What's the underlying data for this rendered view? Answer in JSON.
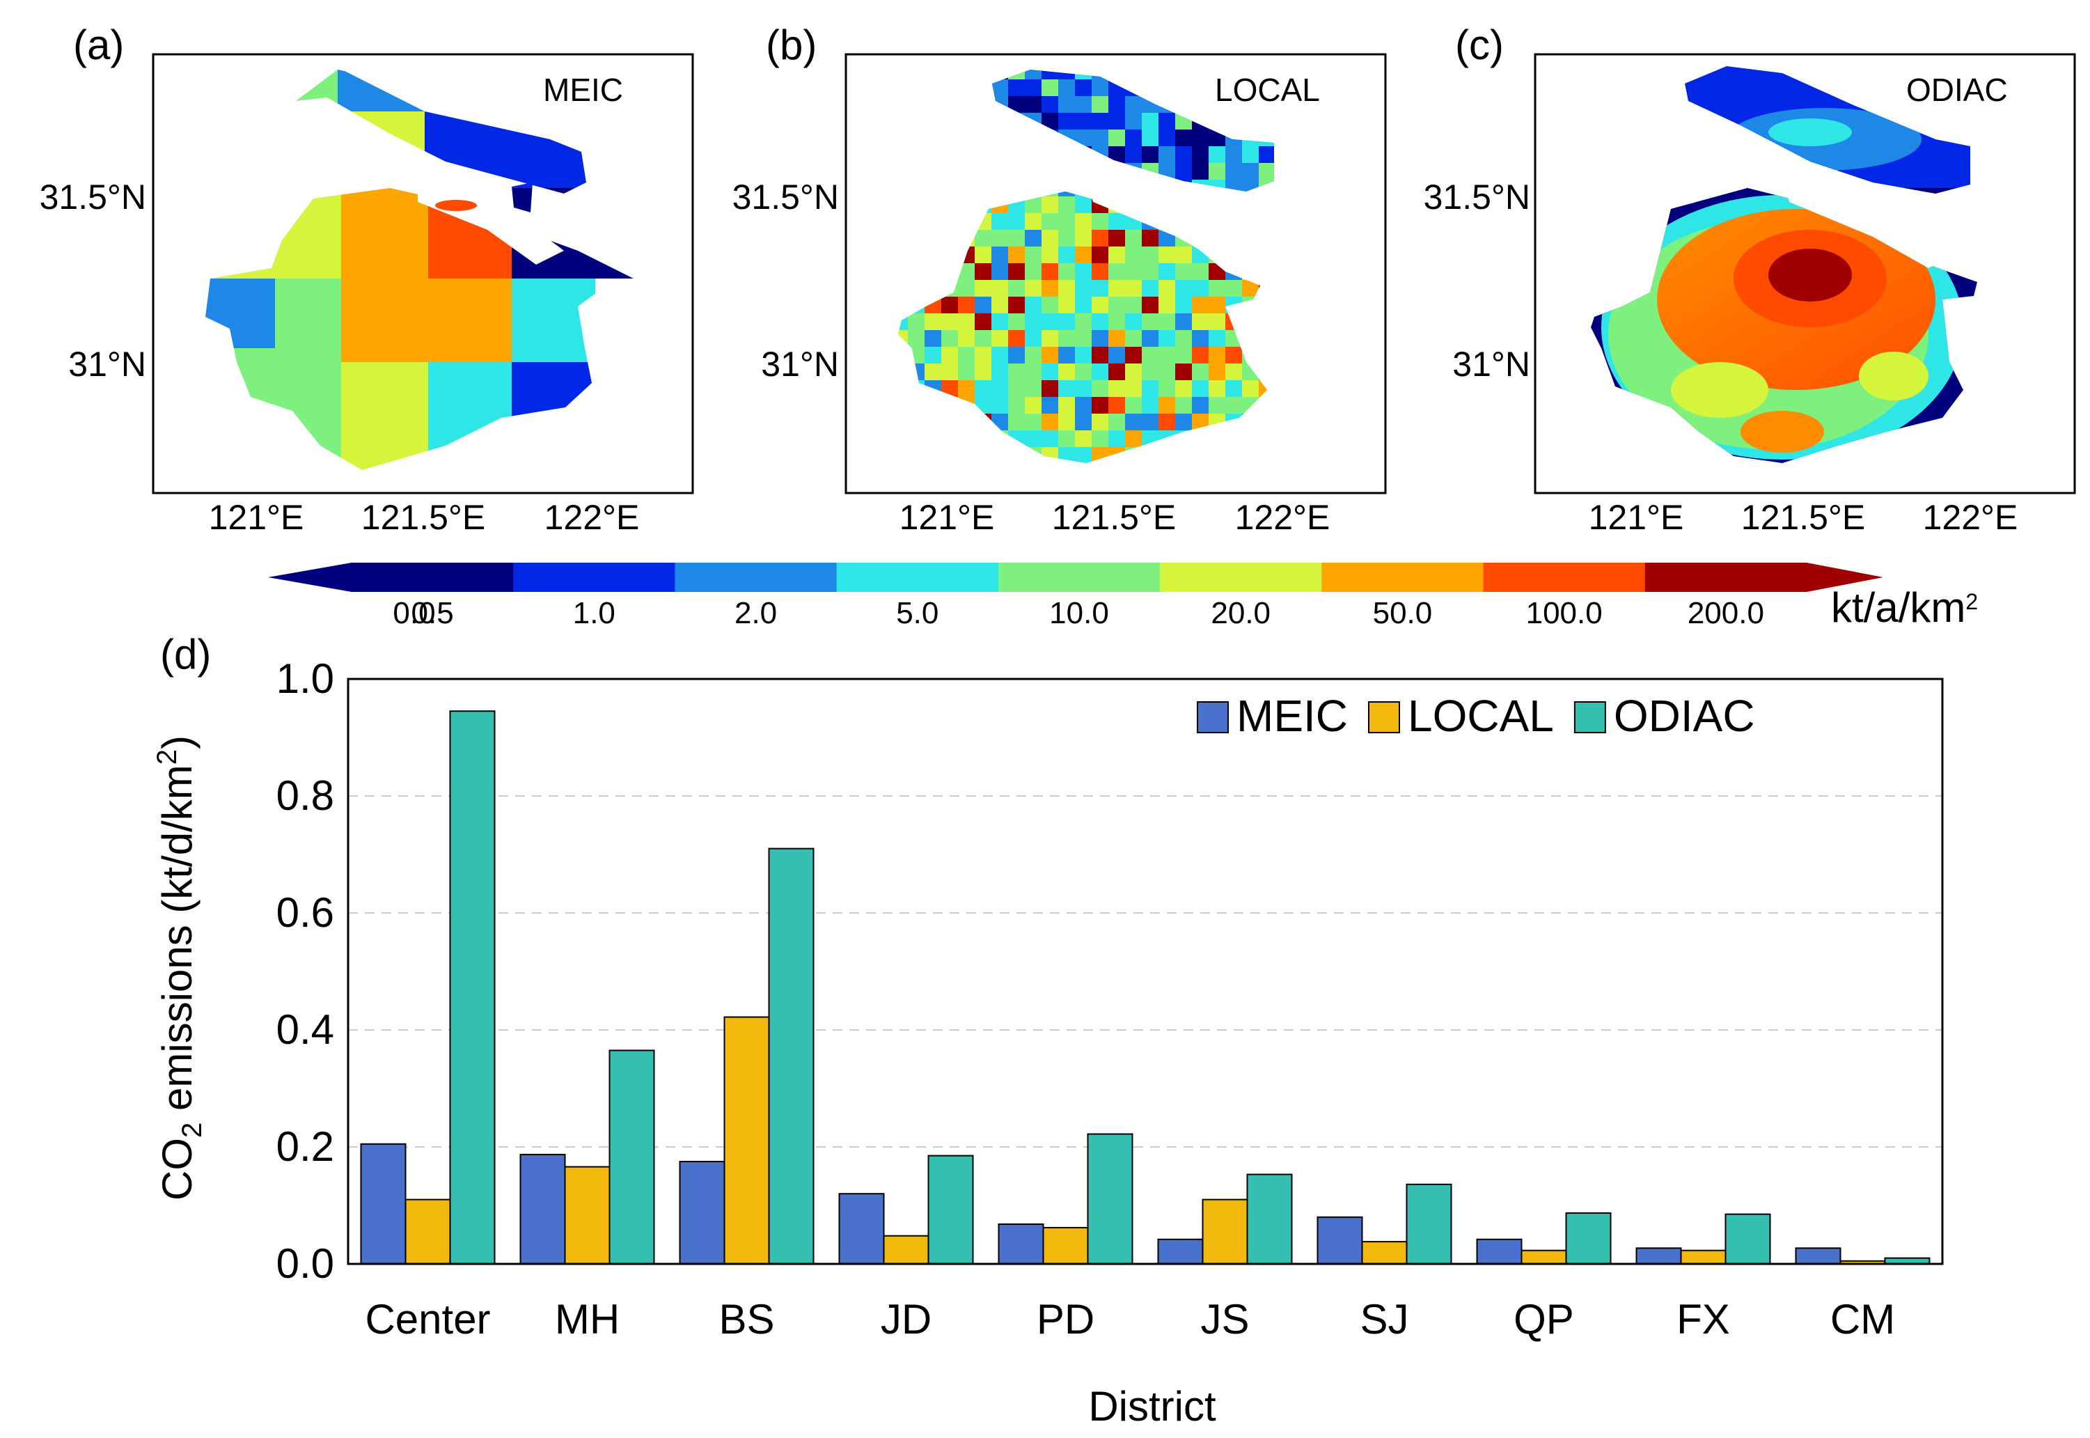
{
  "panels": [
    {
      "letter": "(a)",
      "title": "MEIC"
    },
    {
      "letter": "(b)",
      "title": "LOCAL"
    },
    {
      "letter": "(c)",
      "title": "ODIAC"
    }
  ],
  "map_axes": {
    "lat_ticks": [
      "31.5°N",
      "31°N"
    ],
    "lon_ticks": [
      "121°E",
      "121.5°E",
      "122°E"
    ]
  },
  "colorbar": {
    "ticks": [
      "0.0",
      "0.5",
      "1.0",
      "2.0",
      "5.0",
      "10.0",
      "20.0",
      "50.0",
      "100.0",
      "200.0"
    ],
    "unit_base": "kt/a/km",
    "unit_sup": "2",
    "colors": [
      "#00007f",
      "#0026e6",
      "#1e88e6",
      "#2ee6e6",
      "#7ef07e",
      "#d4f53c",
      "#ffa500",
      "#ff4a00",
      "#a00000"
    ]
  },
  "panel_d_letter": "(d)",
  "chart_data": {
    "type": "bar",
    "title": "",
    "xlabel": "District",
    "ylabel_parts": {
      "pre": "CO",
      "sub": "2",
      "mid": " emissions (kt/d/km",
      "sup": "2",
      "post": ")"
    },
    "categories": [
      "Center",
      "MH",
      "BS",
      "JD",
      "PD",
      "JS",
      "SJ",
      "QP",
      "FX",
      "CM"
    ],
    "ylim": [
      0,
      1.0
    ],
    "yticks": [
      "0.0",
      "0.2",
      "0.4",
      "0.6",
      "0.8",
      "1.0"
    ],
    "grid": "horizontal dashed",
    "legend_position": "top-right",
    "series": [
      {
        "name": "MEIC",
        "color": "#4a72cc",
        "values": [
          0.205,
          0.187,
          0.175,
          0.12,
          0.068,
          0.042,
          0.08,
          0.042,
          0.027,
          0.027
        ]
      },
      {
        "name": "LOCAL",
        "color": "#f2b90c",
        "values": [
          0.11,
          0.166,
          0.422,
          0.048,
          0.062,
          0.11,
          0.038,
          0.023,
          0.023,
          0.005
        ]
      },
      {
        "name": "ODIAC",
        "color": "#35bfb0",
        "values": [
          0.945,
          0.365,
          0.71,
          0.185,
          0.222,
          0.153,
          0.136,
          0.087,
          0.085,
          0.01
        ]
      }
    ]
  }
}
